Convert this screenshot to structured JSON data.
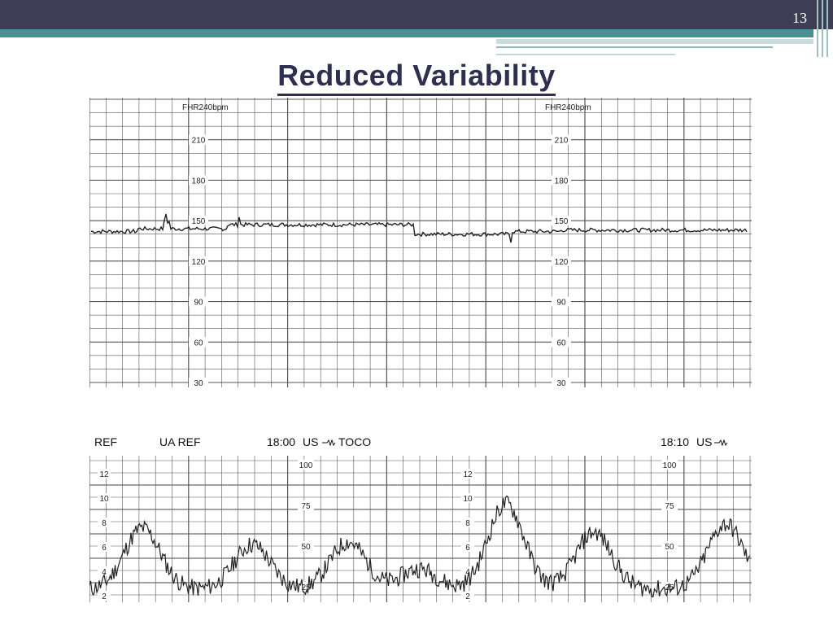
{
  "slide": {
    "number": "13",
    "title": "Reduced Variability"
  },
  "colors": {
    "header_bar": "#3d3e55",
    "accent_teal": "#4b8f93",
    "title_text": "#2f3050"
  },
  "fhr_strip": {
    "scale_label": "FHR240bpm",
    "tick_labels": [
      "210",
      "180",
      "150",
      "120",
      "90",
      "60",
      "30"
    ],
    "baseline_bpm": 143
  },
  "uterine_strip": {
    "labels": {
      "ref": "REF",
      "ua_ref": "UA REF",
      "time1": "18:00",
      "us1": "US",
      "toco": "TOCO",
      "time2": "18:10",
      "us2": "US"
    },
    "kpa_labels": [
      "12",
      "10",
      "8",
      "6",
      "4",
      "2"
    ],
    "mmhg_labels": [
      "100",
      "75",
      "50",
      "25"
    ]
  }
}
